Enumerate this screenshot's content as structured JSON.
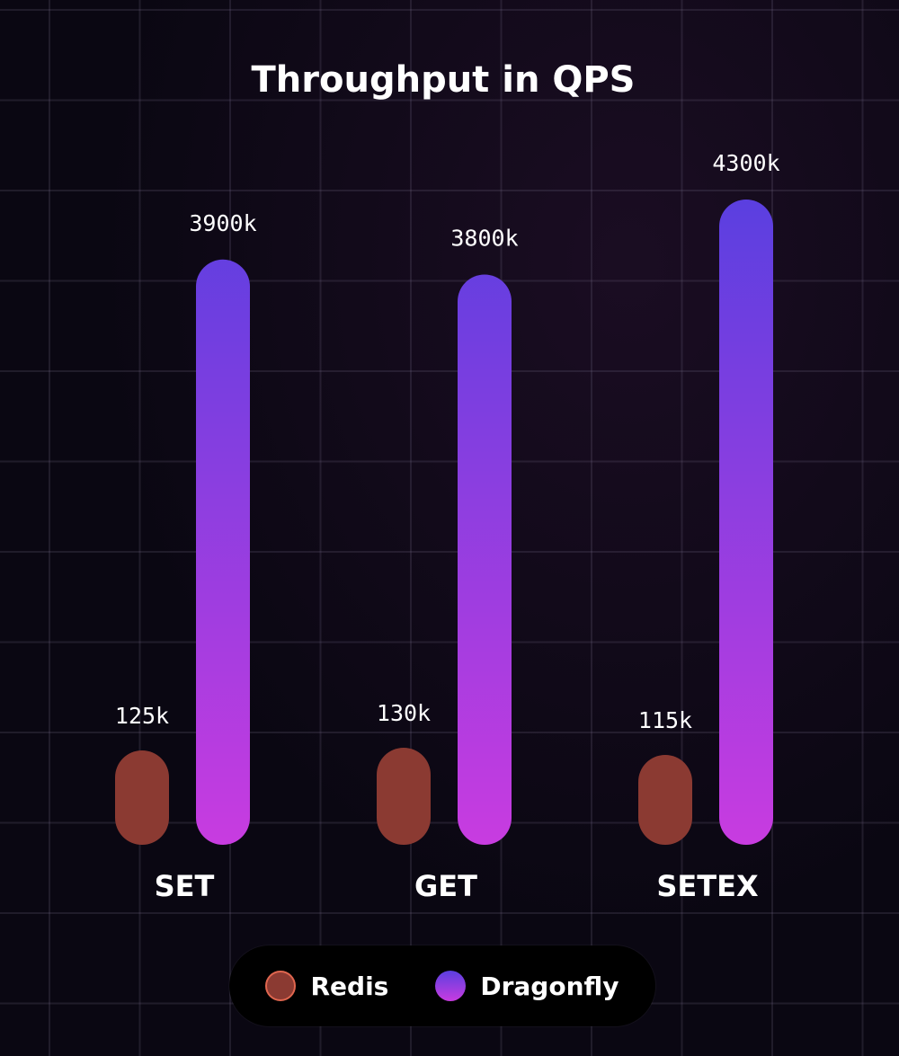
{
  "chart_data": {
    "type": "bar",
    "title": "Throughput in QPS",
    "xlabel": "",
    "ylabel": "",
    "categories": [
      "SET",
      "GET",
      "SETEX"
    ],
    "series": [
      {
        "name": "Redis",
        "values": [
          125,
          130,
          115
        ],
        "labels": [
          "125k",
          "130k",
          "115k"
        ],
        "color": "#8b3a32",
        "swatch_border": "#e0664f"
      },
      {
        "name": "Dragonfly",
        "values": [
          3900,
          3800,
          4300
        ],
        "labels": [
          "3900k",
          "3800k",
          "4300k"
        ],
        "color_top": "#5b3fe0",
        "color_bottom": "#c83ce0"
      }
    ],
    "ylim": [
      0,
      4300
    ],
    "grid": true,
    "legend": "bottom-center"
  }
}
